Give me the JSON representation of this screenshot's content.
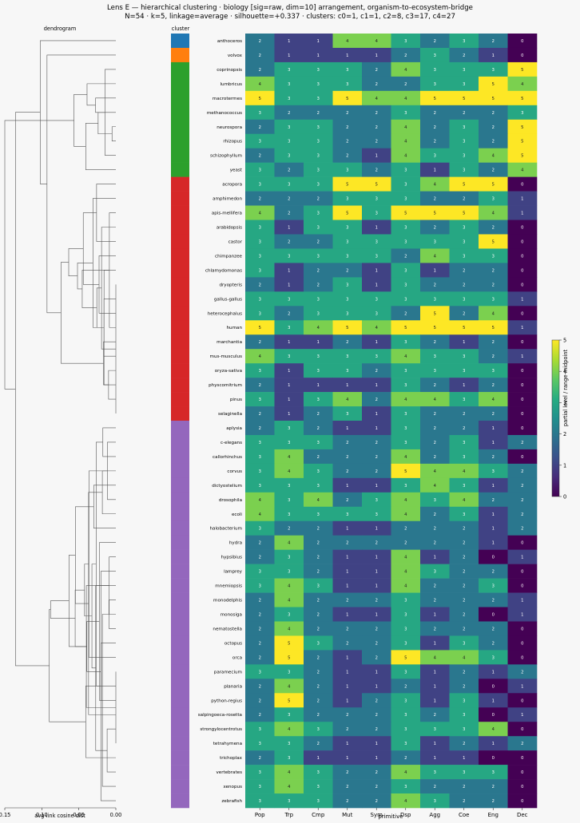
{
  "chart_data": {
    "type": "heatmap",
    "title": "Lens E — hierarchical clustering · biology [sig=raw, dim=10] arrangement, organism-to-ecosystem-bridge",
    "subtitle": "N=54 · k=5, linkage=average · silhouette=+0.337 · clusters: c0=1, c1=1, c2=8, c3=17, c4=27",
    "dendrogram_title": "dendrogram",
    "dendrogram_xlabel": "avg-link cosine dist",
    "dendrogram_xticks": [
      "0.15",
      "0.10",
      "0.05",
      "0.00"
    ],
    "dendrogram_xlim": [
      0.15,
      0.0
    ],
    "cluster_label": "cluster",
    "xlabel": "primitive",
    "columns": [
      "Pop",
      "Trp",
      "Cmp",
      "Mut",
      "Sym",
      "Dsp",
      "Agg",
      "Coe",
      "Eng",
      "Dec"
    ],
    "colorbar_label": "partial level / range-midpoint",
    "colorbar_ticks": [
      "0",
      "1",
      "2",
      "3",
      "4",
      "5"
    ],
    "vmin": 0,
    "vmax": 5,
    "cluster_colors": {
      "c0": "#1f77b4",
      "c1": "#ff7f0e",
      "c2": "#2ca02c",
      "c3": "#d62728",
      "c4": "#9467bd"
    },
    "rows": [
      {
        "name": "anthoceros",
        "cluster": "c0",
        "values": [
          2,
          1,
          1,
          4,
          4,
          3,
          2,
          3,
          2,
          0
        ]
      },
      {
        "name": "volvox",
        "cluster": "c1",
        "values": [
          2,
          1,
          1,
          1,
          1,
          2,
          3,
          2,
          1,
          0
        ]
      },
      {
        "name": "coprinopsis",
        "cluster": "c2",
        "values": [
          2,
          3,
          3,
          3,
          2,
          4,
          3,
          3,
          3,
          5
        ]
      },
      {
        "name": "lumbricus",
        "cluster": "c2",
        "values": [
          4,
          3,
          3,
          3,
          2,
          2,
          3,
          3,
          5,
          4
        ]
      },
      {
        "name": "macrotermes",
        "cluster": "c2",
        "values": [
          5,
          3,
          3,
          5,
          4,
          4,
          5,
          5,
          5,
          5
        ]
      },
      {
        "name": "methanococcus",
        "cluster": "c2",
        "values": [
          3,
          2,
          2,
          2,
          2,
          3,
          2,
          2,
          2,
          3
        ]
      },
      {
        "name": "neurospora",
        "cluster": "c2",
        "values": [
          2,
          3,
          3,
          2,
          2,
          4,
          2,
          3,
          2,
          5
        ]
      },
      {
        "name": "rhizopus",
        "cluster": "c2",
        "values": [
          3,
          3,
          3,
          2,
          2,
          4,
          2,
          3,
          2,
          5
        ]
      },
      {
        "name": "schizophyllum",
        "cluster": "c2",
        "values": [
          2,
          3,
          3,
          2,
          1,
          4,
          3,
          3,
          4,
          5
        ]
      },
      {
        "name": "yeast",
        "cluster": "c2",
        "values": [
          3,
          2,
          3,
          3,
          2,
          3,
          1,
          3,
          2,
          4
        ]
      },
      {
        "name": "acropora",
        "cluster": "c3",
        "values": [
          3,
          3,
          3,
          5,
          5,
          3,
          4,
          5,
          5,
          0
        ]
      },
      {
        "name": "amphimedon",
        "cluster": "c3",
        "values": [
          2,
          2,
          2,
          3,
          3,
          3,
          2,
          2,
          3,
          1
        ]
      },
      {
        "name": "apis-mellifera",
        "cluster": "c3",
        "values": [
          4,
          2,
          3,
          5,
          3,
          5,
          5,
          5,
          4,
          1
        ]
      },
      {
        "name": "arabidopsis",
        "cluster": "c3",
        "values": [
          3,
          1,
          3,
          3,
          1,
          3,
          2,
          3,
          2,
          0
        ]
      },
      {
        "name": "castor",
        "cluster": "c3",
        "values": [
          3,
          2,
          2,
          3,
          3,
          3,
          3,
          3,
          5,
          0
        ]
      },
      {
        "name": "chimpanzee",
        "cluster": "c3",
        "values": [
          3,
          3,
          3,
          3,
          3,
          2,
          4,
          3,
          3,
          0
        ]
      },
      {
        "name": "chlamydomonas",
        "cluster": "c3",
        "values": [
          3,
          1,
          2,
          2,
          1,
          3,
          1,
          2,
          2,
          0
        ]
      },
      {
        "name": "dryopteris",
        "cluster": "c3",
        "values": [
          2,
          1,
          2,
          3,
          1,
          3,
          2,
          2,
          2,
          0
        ]
      },
      {
        "name": "gallus-gallus",
        "cluster": "c3",
        "values": [
          3,
          3,
          3,
          3,
          3,
          3,
          3,
          3,
          3,
          1
        ]
      },
      {
        "name": "heterocephalus",
        "cluster": "c3",
        "values": [
          3,
          2,
          3,
          3,
          3,
          2,
          5,
          2,
          4,
          0
        ]
      },
      {
        "name": "human",
        "cluster": "c3",
        "values": [
          5,
          3,
          4,
          5,
          4,
          5,
          5,
          5,
          5,
          1
        ]
      },
      {
        "name": "marchantia",
        "cluster": "c3",
        "values": [
          2,
          1,
          1,
          2,
          1,
          3,
          2,
          1,
          2,
          0
        ]
      },
      {
        "name": "mus-musculus",
        "cluster": "c3",
        "values": [
          4,
          3,
          3,
          3,
          3,
          4,
          3,
          3,
          2,
          1
        ]
      },
      {
        "name": "oryza-sativa",
        "cluster": "c3",
        "values": [
          3,
          1,
          3,
          3,
          2,
          3,
          3,
          3,
          3,
          0
        ]
      },
      {
        "name": "physcomitrium",
        "cluster": "c3",
        "values": [
          2,
          1,
          1,
          1,
          1,
          3,
          2,
          1,
          2,
          0
        ]
      },
      {
        "name": "pinus",
        "cluster": "c3",
        "values": [
          3,
          1,
          3,
          4,
          2,
          4,
          4,
          3,
          4,
          0
        ]
      },
      {
        "name": "selaginella",
        "cluster": "c3",
        "values": [
          2,
          1,
          2,
          3,
          1,
          3,
          2,
          2,
          2,
          0
        ]
      },
      {
        "name": "aplysia",
        "cluster": "c4",
        "values": [
          2,
          3,
          2,
          1,
          1,
          3,
          2,
          2,
          1,
          0
        ]
      },
      {
        "name": "c-elegans",
        "cluster": "c4",
        "values": [
          3,
          3,
          3,
          2,
          2,
          3,
          2,
          3,
          1,
          2
        ]
      },
      {
        "name": "callorhinchus",
        "cluster": "c4",
        "values": [
          3,
          4,
          2,
          2,
          2,
          4,
          2,
          3,
          2,
          0
        ]
      },
      {
        "name": "corvus",
        "cluster": "c4",
        "values": [
          3,
          4,
          3,
          2,
          2,
          5,
          4,
          4,
          3,
          2
        ]
      },
      {
        "name": "dictyostelium",
        "cluster": "c4",
        "values": [
          3,
          3,
          3,
          1,
          1,
          3,
          4,
          3,
          1,
          2
        ]
      },
      {
        "name": "drosophila",
        "cluster": "c4",
        "values": [
          4,
          3,
          4,
          2,
          3,
          4,
          3,
          4,
          2,
          2
        ]
      },
      {
        "name": "ecoli",
        "cluster": "c4",
        "values": [
          4,
          3,
          3,
          3,
          3,
          4,
          2,
          3,
          1,
          2
        ]
      },
      {
        "name": "halobacterium",
        "cluster": "c4",
        "values": [
          3,
          2,
          2,
          1,
          1,
          2,
          2,
          2,
          1,
          2
        ]
      },
      {
        "name": "hydra",
        "cluster": "c4",
        "values": [
          2,
          4,
          2,
          2,
          2,
          2,
          2,
          2,
          1,
          0
        ]
      },
      {
        "name": "hypsibius",
        "cluster": "c4",
        "values": [
          2,
          3,
          2,
          1,
          1,
          4,
          1,
          2,
          0,
          1
        ]
      },
      {
        "name": "lamprey",
        "cluster": "c4",
        "values": [
          3,
          3,
          2,
          1,
          1,
          4,
          3,
          2,
          2,
          0
        ]
      },
      {
        "name": "mnemiopsis",
        "cluster": "c4",
        "values": [
          3,
          4,
          3,
          1,
          1,
          4,
          2,
          2,
          3,
          0
        ]
      },
      {
        "name": "monodelphis",
        "cluster": "c4",
        "values": [
          2,
          4,
          2,
          2,
          2,
          3,
          2,
          2,
          2,
          1
        ]
      },
      {
        "name": "monosiga",
        "cluster": "c4",
        "values": [
          2,
          3,
          2,
          1,
          1,
          3,
          1,
          2,
          0,
          1
        ]
      },
      {
        "name": "nematostella",
        "cluster": "c4",
        "values": [
          2,
          4,
          2,
          2,
          2,
          3,
          2,
          2,
          2,
          0
        ]
      },
      {
        "name": "octopus",
        "cluster": "c4",
        "values": [
          2,
          5,
          3,
          2,
          2,
          3,
          1,
          3,
          2,
          0
        ]
      },
      {
        "name": "orca",
        "cluster": "c4",
        "values": [
          2,
          5,
          2,
          1,
          2,
          5,
          4,
          4,
          3,
          0
        ]
      },
      {
        "name": "paramecium",
        "cluster": "c4",
        "values": [
          3,
          3,
          2,
          1,
          1,
          3,
          1,
          2,
          1,
          2
        ]
      },
      {
        "name": "planaria",
        "cluster": "c4",
        "values": [
          2,
          4,
          2,
          1,
          1,
          2,
          1,
          2,
          0,
          1
        ]
      },
      {
        "name": "python-regius",
        "cluster": "c4",
        "values": [
          2,
          5,
          2,
          1,
          2,
          3,
          1,
          3,
          1,
          0
        ]
      },
      {
        "name": "salpingoeca-rosetta",
        "cluster": "c4",
        "values": [
          2,
          3,
          2,
          2,
          2,
          3,
          2,
          3,
          0,
          1
        ]
      },
      {
        "name": "strongylocentrotus",
        "cluster": "c4",
        "values": [
          3,
          4,
          3,
          2,
          2,
          3,
          3,
          3,
          4,
          0
        ]
      },
      {
        "name": "tetrahymena",
        "cluster": "c4",
        "values": [
          3,
          3,
          2,
          1,
          1,
          3,
          1,
          2,
          1,
          2
        ]
      },
      {
        "name": "trichoplax",
        "cluster": "c4",
        "values": [
          2,
          3,
          1,
          1,
          1,
          2,
          1,
          1,
          0,
          0
        ]
      },
      {
        "name": "vertebrates",
        "cluster": "c4",
        "values": [
          3,
          4,
          3,
          2,
          2,
          4,
          3,
          3,
          3,
          0
        ]
      },
      {
        "name": "xenopus",
        "cluster": "c4",
        "values": [
          3,
          4,
          3,
          2,
          2,
          3,
          2,
          2,
          2,
          0
        ]
      },
      {
        "name": "zebrafish",
        "cluster": "c4",
        "values": [
          3,
          3,
          3,
          2,
          2,
          4,
          3,
          2,
          2,
          0
        ]
      }
    ]
  }
}
